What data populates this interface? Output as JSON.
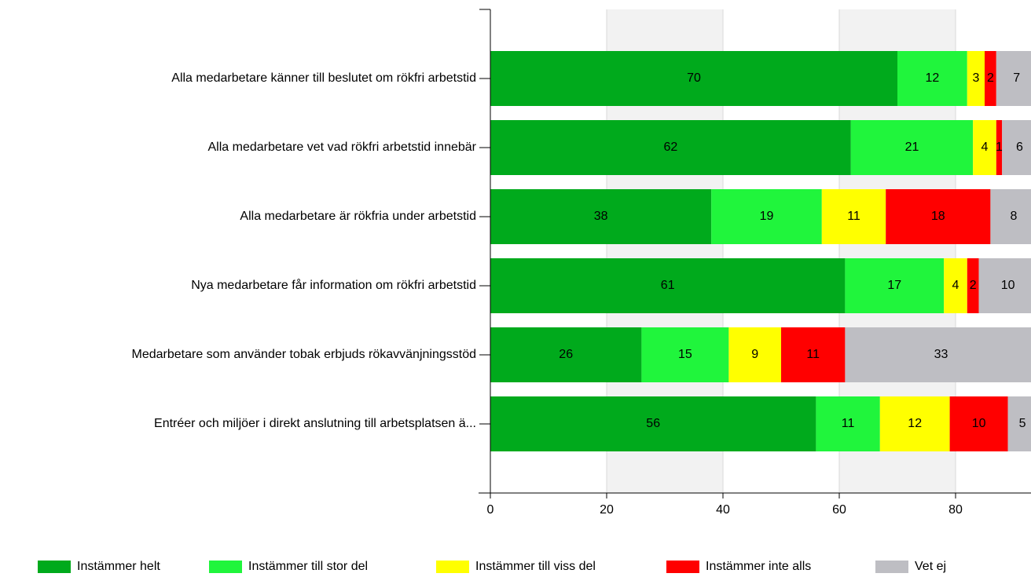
{
  "chart_data": {
    "type": "stacked-bar-horizontal",
    "categories": [
      "Alla medarbetare känner till beslutet om rökfri arbetstid",
      "Alla medarbetare vet vad rökfri arbetstid innebär",
      "Alla medarbetare är rökfria under arbetstid",
      "Nya medarbetare får information om rökfri arbetstid",
      "Medarbetare som använder tobak erbjuds rökavvänjningsstöd",
      "Entréer och miljöer i direkt anslutning till arbetsplatsen ä..."
    ],
    "series": [
      {
        "name": "Instämmer helt",
        "color": "#00aa1c",
        "values": [
          70,
          62,
          38,
          61,
          26,
          56
        ]
      },
      {
        "name": "Instämmer till stor del",
        "color": "#20f53c",
        "values": [
          12,
          21,
          19,
          17,
          15,
          11
        ]
      },
      {
        "name": "Instämmer till viss del",
        "color": "#ffff00",
        "values": [
          3,
          4,
          11,
          4,
          9,
          12
        ]
      },
      {
        "name": "Instämmer inte alls",
        "color": "#ff0000",
        "values": [
          2,
          1,
          18,
          2,
          11,
          10
        ]
      },
      {
        "name": "Vet ej",
        "color": "#bebec3",
        "values": [
          7,
          6,
          8,
          10,
          33,
          5
        ]
      }
    ],
    "xlim": [
      0,
      100
    ],
    "xticks": [
      0,
      20,
      40,
      60,
      80,
      100
    ],
    "grid": true,
    "legend": "bottom"
  }
}
